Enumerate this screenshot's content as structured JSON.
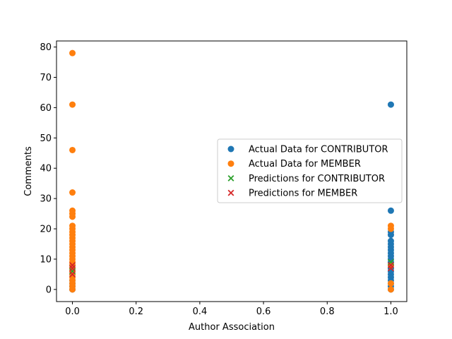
{
  "chart_data": {
    "type": "scatter",
    "title": "",
    "xlabel": "Author Association",
    "ylabel": "Comments",
    "xlim": [
      -0.05,
      1.05
    ],
    "ylim": [
      -4,
      82
    ],
    "xticks": [
      0.0,
      0.2,
      0.4,
      0.6,
      0.8,
      1.0
    ],
    "xtick_labels": [
      "0.0",
      "0.2",
      "0.4",
      "0.6",
      "0.8",
      "1.0"
    ],
    "yticks": [
      0,
      10,
      20,
      30,
      40,
      50,
      60,
      70,
      80
    ],
    "ytick_labels": [
      "0",
      "10",
      "20",
      "30",
      "40",
      "50",
      "60",
      "70",
      "80"
    ],
    "grid": false,
    "legend_position": "center-right",
    "series": [
      {
        "name": "Actual Data for CONTRIBUTOR",
        "marker": "circle",
        "color": "#1f77b4",
        "points": [
          [
            0,
            0
          ],
          [
            0,
            1
          ],
          [
            0,
            2
          ],
          [
            0,
            3
          ],
          [
            0,
            5
          ],
          [
            0,
            7
          ],
          [
            0,
            8
          ],
          [
            1,
            0
          ],
          [
            1,
            1
          ],
          [
            1,
            2
          ],
          [
            1,
            3
          ],
          [
            1,
            4
          ],
          [
            1,
            5
          ],
          [
            1,
            6
          ],
          [
            1,
            7
          ],
          [
            1,
            8
          ],
          [
            1,
            9
          ],
          [
            1,
            10
          ],
          [
            1,
            11
          ],
          [
            1,
            12
          ],
          [
            1,
            13
          ],
          [
            1,
            14
          ],
          [
            1,
            15
          ],
          [
            1,
            16
          ],
          [
            1,
            18
          ],
          [
            1,
            19
          ],
          [
            1,
            26
          ],
          [
            1,
            61
          ]
        ]
      },
      {
        "name": "Actual Data for MEMBER",
        "marker": "circle",
        "color": "#ff7f0e",
        "points": [
          [
            0,
            0
          ],
          [
            0,
            1
          ],
          [
            0,
            2
          ],
          [
            0,
            3
          ],
          [
            0,
            4
          ],
          [
            0,
            5
          ],
          [
            0,
            6
          ],
          [
            0,
            7
          ],
          [
            0,
            8
          ],
          [
            0,
            9
          ],
          [
            0,
            10
          ],
          [
            0,
            11
          ],
          [
            0,
            12
          ],
          [
            0,
            13
          ],
          [
            0,
            14
          ],
          [
            0,
            15
          ],
          [
            0,
            16
          ],
          [
            0,
            17
          ],
          [
            0,
            18
          ],
          [
            0,
            19
          ],
          [
            0,
            20
          ],
          [
            0,
            21
          ],
          [
            0,
            24
          ],
          [
            0,
            25
          ],
          [
            0,
            26
          ],
          [
            0,
            32
          ],
          [
            0,
            46
          ],
          [
            0,
            61
          ],
          [
            0,
            78
          ],
          [
            1,
            0
          ],
          [
            1,
            2
          ],
          [
            1,
            8
          ],
          [
            1,
            20
          ],
          [
            1,
            21
          ]
        ]
      },
      {
        "name": "Predictions for CONTRIBUTOR",
        "marker": "x",
        "color": "#2ca02c",
        "points": [
          [
            0,
            6
          ],
          [
            0,
            7
          ],
          [
            1,
            9
          ],
          [
            1,
            8
          ]
        ]
      },
      {
        "name": "Predictions for MEMBER",
        "marker": "x",
        "color": "#d62728",
        "points": [
          [
            0,
            5
          ],
          [
            0,
            7
          ],
          [
            0,
            8
          ],
          [
            1,
            7
          ],
          [
            1,
            8
          ]
        ]
      }
    ]
  }
}
